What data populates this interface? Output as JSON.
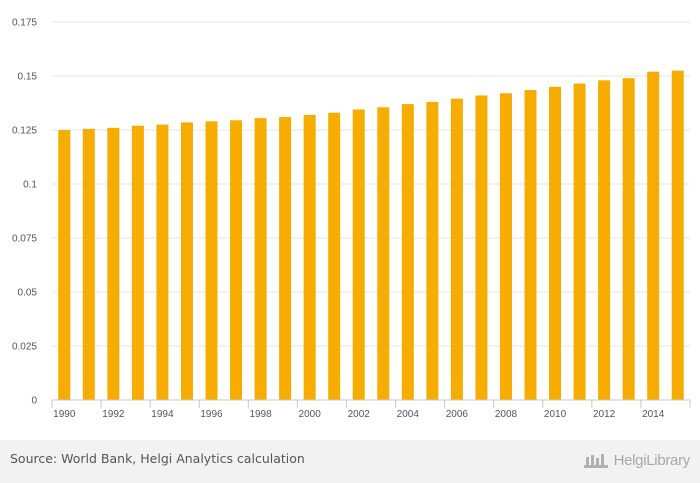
{
  "chart_data": {
    "type": "bar",
    "categories": [
      "1990",
      "1991",
      "1992",
      "1993",
      "1994",
      "1995",
      "1996",
      "1997",
      "1998",
      "1999",
      "2000",
      "2001",
      "2002",
      "2003",
      "2004",
      "2005",
      "2006",
      "2007",
      "2008",
      "2009",
      "2010",
      "2011",
      "2012",
      "2013",
      "2014",
      "2015"
    ],
    "x_tick_labels": [
      "1990",
      "1992",
      "1994",
      "1996",
      "1998",
      "2000",
      "2002",
      "2004",
      "2006",
      "2008",
      "2010",
      "2012",
      "2014"
    ],
    "values": [
      0.125,
      0.1255,
      0.126,
      0.127,
      0.1275,
      0.1285,
      0.129,
      0.1295,
      0.1305,
      0.131,
      0.132,
      0.133,
      0.1345,
      0.1355,
      0.137,
      0.138,
      0.1395,
      0.141,
      0.142,
      0.1435,
      0.145,
      0.1465,
      0.148,
      0.149,
      0.152,
      0.1525
    ],
    "y_ticks": [
      "0",
      "0.025",
      "0.05",
      "0.075",
      "0.1",
      "0.125",
      "0.15",
      "0.175"
    ],
    "ylim": [
      0,
      0.175
    ],
    "title": "",
    "xlabel": "",
    "ylabel": "",
    "grid": true,
    "bar_color": "#f7ad00"
  },
  "footer": {
    "source": "Source: World Bank, Helgi Analytics calculation",
    "brand": "HelgiLibrary"
  }
}
